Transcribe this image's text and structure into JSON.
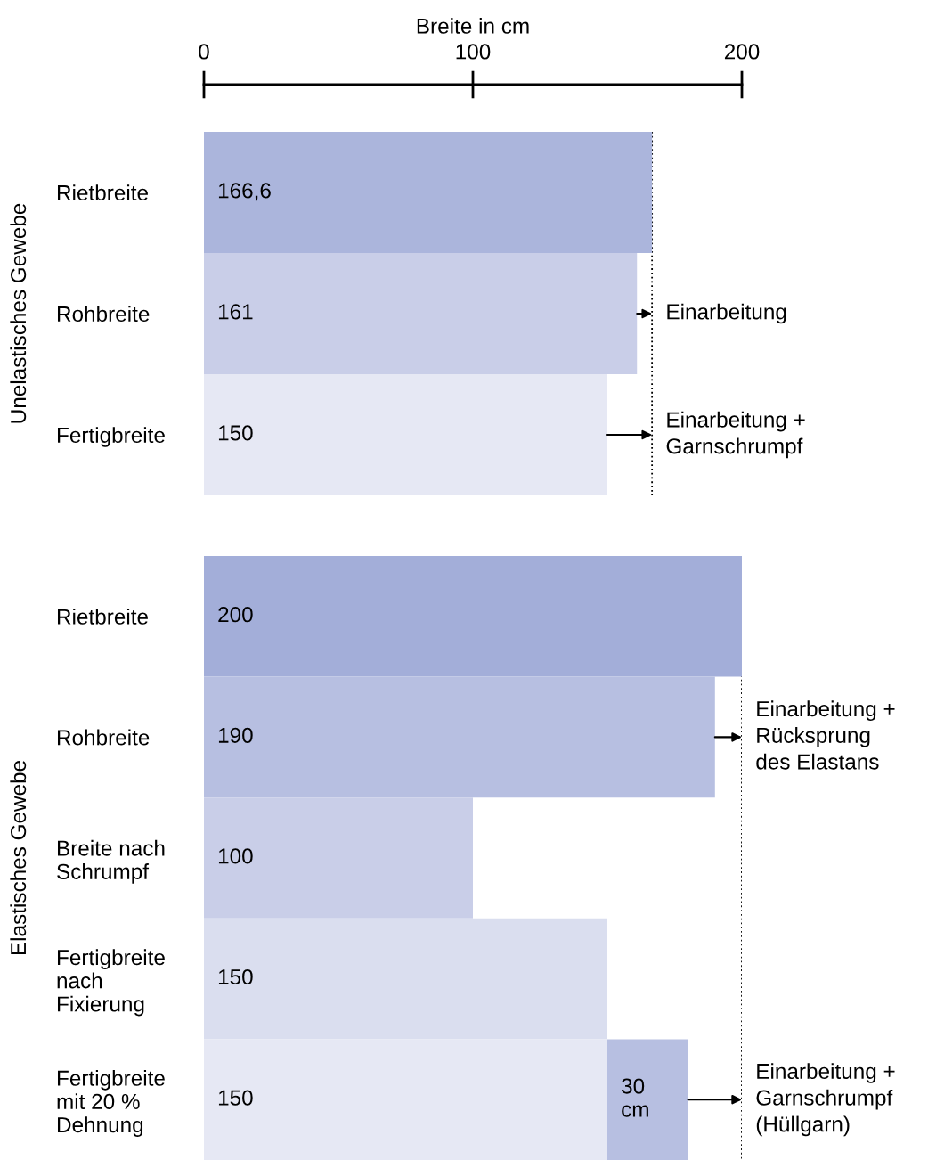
{
  "chart_data": [
    {
      "type": "bar",
      "orientation": "horizontal",
      "xlabel": "Breite in cm",
      "ylabel": "Unelastisches Gewebe",
      "categories": [
        "Rietbreite",
        "Rohbreite",
        "Fertigbreite"
      ],
      "series": [
        {
          "values": [
            166.6,
            161,
            150
          ],
          "colors": [
            "#abb5dc",
            "#c9cee8",
            "#e6e8f4"
          ],
          "value_labels": [
            "166,6",
            "161",
            "150"
          ]
        }
      ],
      "xlim": [
        0,
        200
      ],
      "xticks": [
        0,
        100,
        200
      ],
      "ref_lines": [
        {
          "axis": "x",
          "value": 166.6,
          "line_style": "dotted",
          "color": "#000000"
        }
      ],
      "annotations": [
        "Einarbeitung",
        "Einarbeitung +\nGarnschrumpf"
      ]
    },
    {
      "type": "bar",
      "orientation": "horizontal",
      "stacked": true,
      "ylabel": "Elastisches Gewebe",
      "tick_labels": "y",
      "categories": [
        "Rietbreite",
        "Rohbreite",
        "Breite nach\nSchrumpf",
        "Fertigbreite\nnach\nFixierung",
        "Fertigbreite\nmit 20 %\nDehnung"
      ],
      "series": [
        {
          "values": [
            200,
            190,
            100,
            150,
            150
          ],
          "colors": [
            "#a3aed9",
            "#b7bfe1",
            "#c9cee8",
            "#dadeef",
            "#e6e8f4"
          ],
          "value_labels": [
            "200",
            "190",
            "100",
            "150",
            "150"
          ]
        },
        {
          "values": [
            null,
            null,
            null,
            null,
            30
          ],
          "colors": [
            null,
            null,
            null,
            null,
            "#b7bfe1"
          ],
          "value_labels": [
            null,
            null,
            null,
            null,
            "30\ncm"
          ]
        }
      ],
      "xlim": [
        0,
        200
      ],
      "xticks": [
        0,
        100,
        200
      ],
      "ref_lines": [
        {
          "axis": "x",
          "value": 200,
          "line_style": "dotted",
          "color": "#000000"
        }
      ],
      "annotations": [
        "Einarbeitung +\nRücksprung\ndes Elastans",
        "Einarbeitung +\nGarnschrumpf\n(Hüllgarn)"
      ]
    }
  ]
}
